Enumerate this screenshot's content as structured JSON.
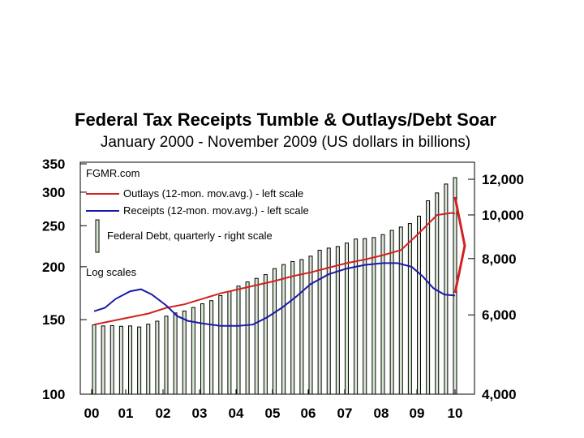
{
  "chart_data": {
    "type": "bar+line",
    "title": "Federal Tax Receipts Tumble & Outlays/Debt Soar",
    "subtitle": "January 2000 - November 2009 (US dollars in billions)",
    "source": "FGMR.com",
    "note": "Log scales",
    "legend": [
      {
        "key": "outlays",
        "label": "Outlays (12-mon. mov.avg.) - left scale",
        "color": "#d42020"
      },
      {
        "key": "receipts",
        "label": "Receipts (12-mon. mov.avg.) - left scale",
        "color": "#1a1aa8"
      },
      {
        "key": "debt",
        "label": "Federal Debt, quarterly - right scale",
        "color": "#000000"
      }
    ],
    "x_tick_labels": [
      "00",
      "01",
      "02",
      "03",
      "04",
      "05",
      "06",
      "07",
      "08",
      "09",
      "10"
    ],
    "x_range": [
      2000.0,
      2010.2
    ],
    "left_axis": {
      "scale": "log",
      "ticks": [
        100,
        150,
        200,
        250,
        300,
        350
      ],
      "tick_labels": [
        "100",
        "150",
        "200",
        "250",
        "300",
        "350"
      ],
      "range": [
        100,
        350
      ]
    },
    "right_axis": {
      "scale": "log",
      "ticks": [
        4000,
        6000,
        8000,
        10000,
        12000
      ],
      "tick_labels": [
        "4,000",
        "6,000",
        "8,000",
        "10,000",
        "12,000"
      ],
      "range": [
        4000,
        12800
      ]
    },
    "series": [
      {
        "name": "Outlays",
        "axis": "left",
        "color": "#d42020",
        "points": [
          [
            2000.0,
            146
          ],
          [
            2000.5,
            149
          ],
          [
            2001.0,
            152
          ],
          [
            2001.5,
            155
          ],
          [
            2002.0,
            160
          ],
          [
            2002.5,
            163
          ],
          [
            2003.0,
            168
          ],
          [
            2003.5,
            173
          ],
          [
            2004.0,
            177
          ],
          [
            2004.5,
            181
          ],
          [
            2005.0,
            185
          ],
          [
            2005.5,
            190
          ],
          [
            2006.0,
            194
          ],
          [
            2006.5,
            199
          ],
          [
            2007.0,
            204
          ],
          [
            2007.5,
            208
          ],
          [
            2008.0,
            213
          ],
          [
            2008.5,
            219
          ],
          [
            2009.0,
            240
          ],
          [
            2009.5,
            265
          ],
          [
            2009.9,
            268
          ],
          [
            2010.0,
            267
          ]
        ]
      },
      {
        "name": "Receipts",
        "axis": "left",
        "color": "#1a1aa8",
        "points": [
          [
            2000.0,
            157
          ],
          [
            2000.3,
            160
          ],
          [
            2000.6,
            168
          ],
          [
            2001.0,
            175
          ],
          [
            2001.3,
            177
          ],
          [
            2001.6,
            172
          ],
          [
            2002.0,
            162
          ],
          [
            2002.3,
            153
          ],
          [
            2002.6,
            149
          ],
          [
            2003.0,
            147
          ],
          [
            2003.5,
            145
          ],
          [
            2004.0,
            145
          ],
          [
            2004.4,
            146
          ],
          [
            2004.8,
            152
          ],
          [
            2005.2,
            160
          ],
          [
            2005.6,
            170
          ],
          [
            2006.0,
            182
          ],
          [
            2006.5,
            192
          ],
          [
            2007.0,
            198
          ],
          [
            2007.5,
            202
          ],
          [
            2008.0,
            204
          ],
          [
            2008.4,
            204
          ],
          [
            2008.8,
            200
          ],
          [
            2009.1,
            190
          ],
          [
            2009.4,
            178
          ],
          [
            2009.7,
            172
          ],
          [
            2010.0,
            171
          ]
        ]
      },
      {
        "name": "Federal Debt",
        "axis": "right",
        "type": "bar",
        "points": [
          [
            2000.0,
            5700
          ],
          [
            2000.25,
            5670
          ],
          [
            2000.5,
            5680
          ],
          [
            2000.75,
            5660
          ],
          [
            2001.0,
            5670
          ],
          [
            2001.25,
            5640
          ],
          [
            2001.5,
            5720
          ],
          [
            2001.75,
            5810
          ],
          [
            2002.0,
            5960
          ],
          [
            2002.25,
            6060
          ],
          [
            2002.5,
            6120
          ],
          [
            2002.75,
            6230
          ],
          [
            2003.0,
            6350
          ],
          [
            2003.25,
            6450
          ],
          [
            2003.5,
            6620
          ],
          [
            2003.75,
            6770
          ],
          [
            2004.0,
            6950
          ],
          [
            2004.25,
            7100
          ],
          [
            2004.5,
            7230
          ],
          [
            2004.75,
            7370
          ],
          [
            2005.0,
            7600
          ],
          [
            2005.25,
            7760
          ],
          [
            2005.5,
            7880
          ],
          [
            2005.75,
            7960
          ],
          [
            2006.0,
            8100
          ],
          [
            2006.25,
            8350
          ],
          [
            2006.5,
            8440
          ],
          [
            2006.75,
            8510
          ],
          [
            2007.0,
            8660
          ],
          [
            2007.25,
            8840
          ],
          [
            2007.5,
            8860
          ],
          [
            2007.75,
            8910
          ],
          [
            2008.0,
            9040
          ],
          [
            2008.25,
            9240
          ],
          [
            2008.5,
            9400
          ],
          [
            2008.75,
            9570
          ],
          [
            2009.0,
            9940
          ],
          [
            2009.25,
            10750
          ],
          [
            2009.5,
            11190
          ],
          [
            2009.75,
            11710
          ],
          [
            2010.0,
            12100
          ]
        ]
      }
    ],
    "annotation": "red arrow pointing down from outlays line at right edge"
  }
}
